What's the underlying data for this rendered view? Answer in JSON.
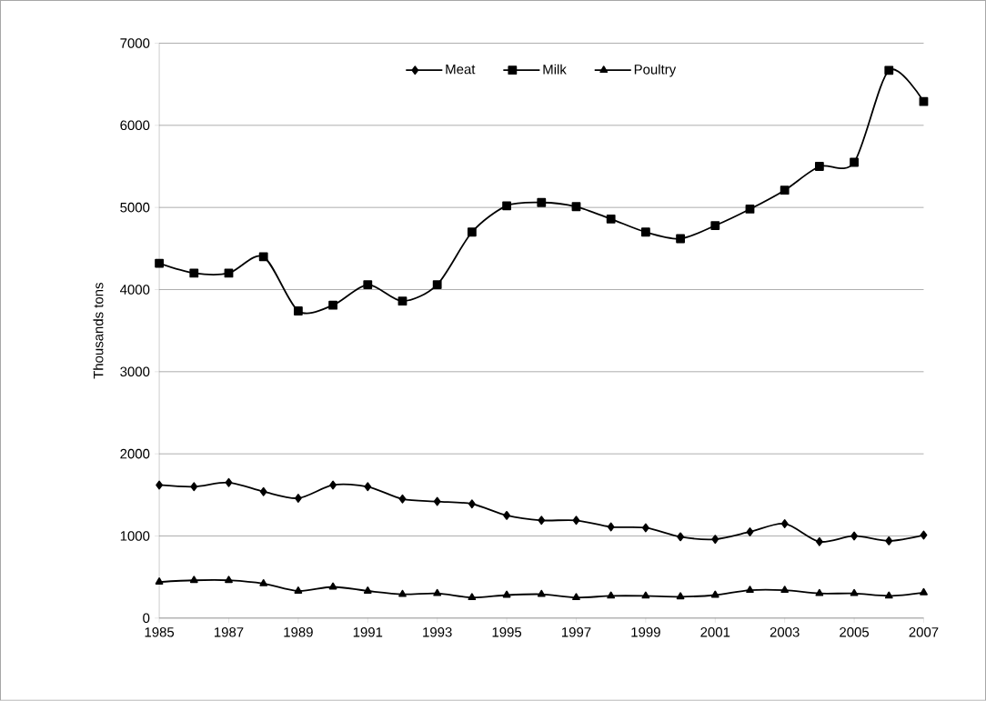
{
  "chart_data": {
    "type": "line",
    "ylabel": "Thousands tons",
    "x": [
      1985,
      1986,
      1987,
      1988,
      1989,
      1990,
      1991,
      1992,
      1993,
      1994,
      1995,
      1996,
      1997,
      1998,
      1999,
      2000,
      2001,
      2002,
      2003,
      2004,
      2005,
      2006,
      2007
    ],
    "series": [
      {
        "name": "Meat",
        "color": "#000000",
        "marker": "diamond",
        "values": [
          1620,
          1600,
          1650,
          1540,
          1460,
          1620,
          1600,
          1450,
          1420,
          1390,
          1250,
          1190,
          1190,
          1110,
          1100,
          990,
          960,
          1050,
          1150,
          930,
          1000,
          940,
          1010
        ]
      },
      {
        "name": "Milk",
        "color": "#000000",
        "marker": "square",
        "values": [
          4320,
          4200,
          4200,
          4400,
          3740,
          3810,
          4060,
          3860,
          4060,
          4700,
          5020,
          5060,
          5010,
          4860,
          4700,
          4620,
          4780,
          4980,
          5210,
          5500,
          5550,
          6670,
          6290
        ]
      },
      {
        "name": "Poultry",
        "color": "#000000",
        "marker": "triangle",
        "values": [
          440,
          460,
          460,
          420,
          330,
          380,
          330,
          290,
          300,
          250,
          280,
          290,
          250,
          270,
          270,
          260,
          280,
          340,
          340,
          300,
          300,
          270,
          310
        ]
      }
    ],
    "xlim": [
      1985,
      2007
    ],
    "xticks": [
      1985,
      1987,
      1989,
      1991,
      1993,
      1995,
      1997,
      1999,
      2001,
      2003,
      2005,
      2007
    ],
    "ylim": [
      0,
      7000
    ],
    "yticks": [
      0,
      1000,
      2000,
      3000,
      4000,
      5000,
      6000,
      7000
    ],
    "grid": "y",
    "legend": "top",
    "line_style": "solid"
  }
}
